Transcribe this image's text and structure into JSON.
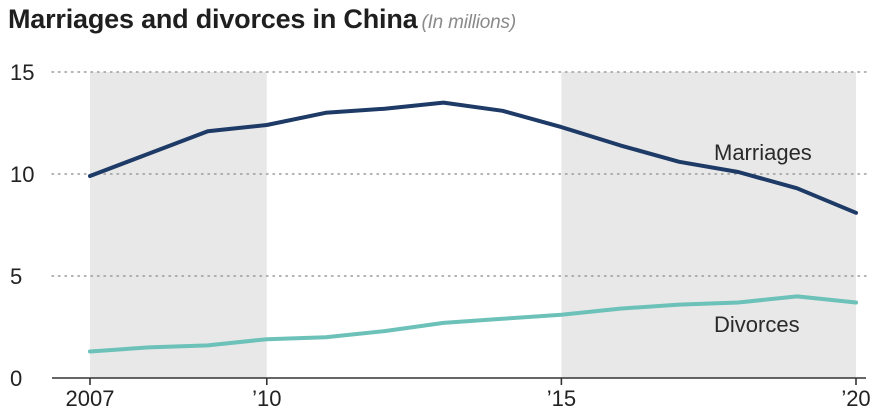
{
  "header": {
    "title": "Marriages and divorces in China",
    "subtitle": "(In millions)"
  },
  "chart_data": {
    "type": "line",
    "title": "Marriages and divorces in China",
    "subtitle": "(In millions)",
    "x": [
      2007,
      2008,
      2009,
      2010,
      2011,
      2012,
      2013,
      2014,
      2015,
      2016,
      2017,
      2018,
      2019,
      2020
    ],
    "series": [
      {
        "name": "Marriages",
        "color": "#1e3a66",
        "values": [
          9.9,
          11.0,
          12.1,
          12.4,
          13.0,
          13.2,
          13.5,
          13.1,
          12.3,
          11.4,
          10.6,
          10.1,
          9.3,
          8.1
        ]
      },
      {
        "name": "Divorces",
        "color": "#6cc1b8",
        "values": [
          1.3,
          1.5,
          1.6,
          1.9,
          2.0,
          2.3,
          2.7,
          2.9,
          3.1,
          3.4,
          3.6,
          3.7,
          4.0,
          3.7
        ]
      }
    ],
    "ylim": [
      0,
      15
    ],
    "yticks": [
      0,
      5,
      10,
      15
    ],
    "xticks": [
      {
        "x": 2007,
        "label": "2007"
      },
      {
        "x": 2010,
        "label": "’10"
      },
      {
        "x": 2015,
        "label": "’15"
      },
      {
        "x": 2020,
        "label": "’20"
      }
    ],
    "shaded_ranges": [
      [
        2007,
        2010
      ],
      [
        2015,
        2020
      ]
    ],
    "grid": "horizontal dotted",
    "xlabel": "",
    "ylabel": ""
  }
}
